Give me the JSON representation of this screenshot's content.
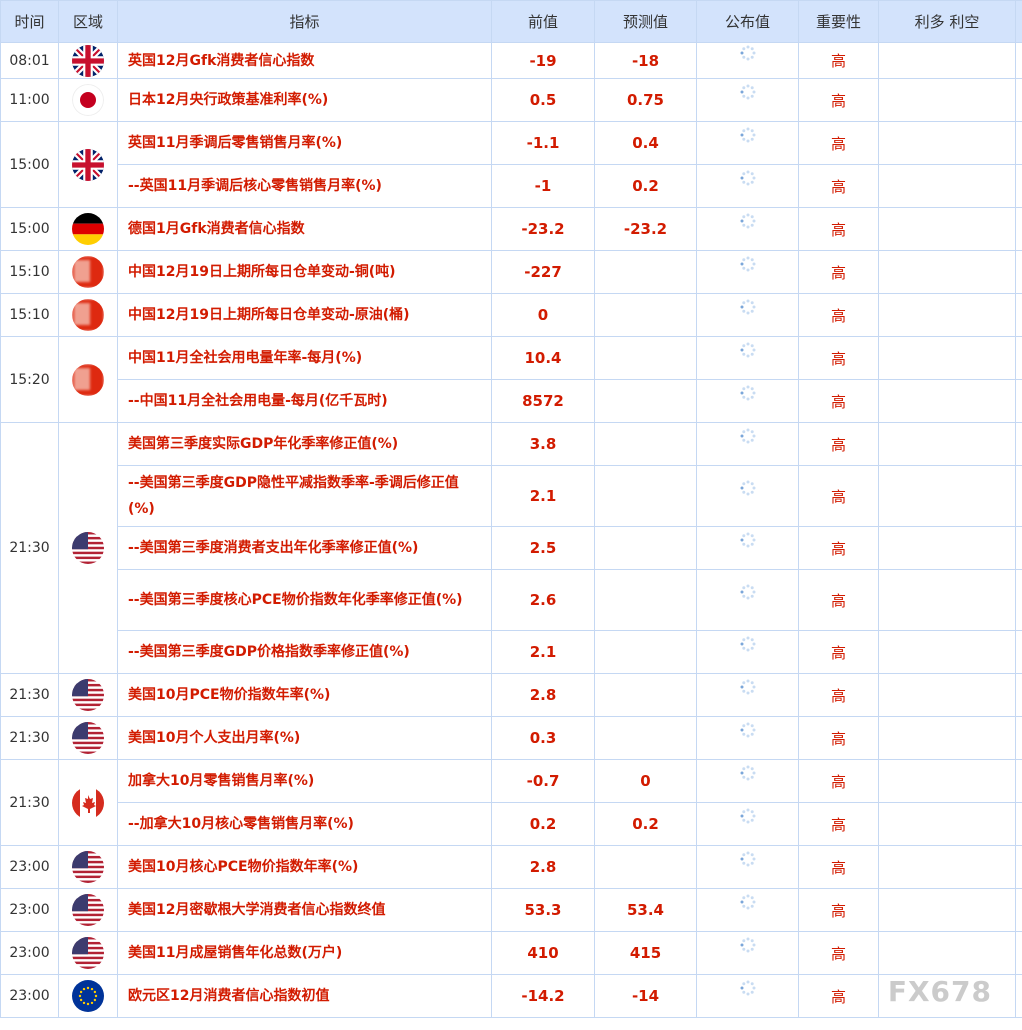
{
  "header": {
    "time": "时间",
    "region": "区域",
    "indicator": "指标",
    "previous": "前值",
    "forecast": "预测值",
    "actual": "公布值",
    "importance": "重要性",
    "impact": "利多 利空"
  },
  "colors": {
    "text_red": "#d21b00",
    "header_bg": "#d3e3fc",
    "border": "#c5d8f3"
  },
  "groups": [
    {
      "time": "08:01",
      "flag": "uk-flag",
      "items": [
        {
          "name": "英国12月Gfk消费者信心指数",
          "previous": "-19",
          "forecast": "-18",
          "actual": "",
          "importance": "高"
        }
      ]
    },
    {
      "time": "11:00",
      "flag": "japan-flag",
      "items": [
        {
          "name": "日本12月央行政策基准利率(%)",
          "previous": "0.5",
          "forecast": "0.75",
          "actual": "",
          "importance": "高"
        }
      ]
    },
    {
      "time": "15:00",
      "flag": "uk-flag",
      "items": [
        {
          "name": "英国11月季调后零售销售月率(%)",
          "previous": "-1.1",
          "forecast": "0.4",
          "actual": "",
          "importance": "高"
        },
        {
          "name": "--英国11月季调后核心零售销售月率(%)",
          "previous": "-1",
          "forecast": "0.2",
          "actual": "",
          "importance": "高"
        }
      ]
    },
    {
      "time": "15:00",
      "flag": "germany-flag",
      "items": [
        {
          "name": "德国1月Gfk消费者信心指数",
          "previous": "-23.2",
          "forecast": "-23.2",
          "actual": "",
          "importance": "高"
        }
      ]
    },
    {
      "time": "15:10",
      "flag": "china-flag",
      "items": [
        {
          "name": "中国12月19日上期所每日仓单变动-铜(吨)",
          "previous": "-227",
          "forecast": "",
          "actual": "",
          "importance": "高"
        }
      ]
    },
    {
      "time": "15:10",
      "flag": "china-flag",
      "items": [
        {
          "name": "中国12月19日上期所每日仓单变动-原油(桶)",
          "previous": "0",
          "forecast": "",
          "actual": "",
          "importance": "高"
        }
      ]
    },
    {
      "time": "15:20",
      "flag": "china-flag",
      "items": [
        {
          "name": "中国11月全社会用电量年率-每月(%)",
          "previous": "10.4",
          "forecast": "",
          "actual": "",
          "importance": "高"
        },
        {
          "name": "--中国11月全社会用电量-每月(亿千瓦时)",
          "previous": "8572",
          "forecast": "",
          "actual": "",
          "importance": "高"
        }
      ]
    },
    {
      "time": "21:30",
      "flag": "us-flag",
      "items": [
        {
          "name": "美国第三季度实际GDP年化季率修正值(%)",
          "previous": "3.8",
          "forecast": "",
          "actual": "",
          "importance": "高"
        },
        {
          "name": "--美国第三季度GDP隐性平减指数季率-季调后修正值(%)",
          "previous": "2.1",
          "forecast": "",
          "actual": "",
          "importance": "高"
        },
        {
          "name": "--美国第三季度消费者支出年化季率修正值(%)",
          "previous": "2.5",
          "forecast": "",
          "actual": "",
          "importance": "高"
        },
        {
          "name": "--美国第三季度核心PCE物价指数年化季率修正值(%)",
          "previous": "2.6",
          "forecast": "",
          "actual": "",
          "importance": "高"
        },
        {
          "name": "--美国第三季度GDP价格指数季率修正值(%)",
          "previous": "2.1",
          "forecast": "",
          "actual": "",
          "importance": "高"
        }
      ]
    },
    {
      "time": "21:30",
      "flag": "us-flag",
      "items": [
        {
          "name": "美国10月PCE物价指数年率(%)",
          "previous": "2.8",
          "forecast": "",
          "actual": "",
          "importance": "高"
        }
      ]
    },
    {
      "time": "21:30",
      "flag": "us-flag",
      "items": [
        {
          "name": "美国10月个人支出月率(%)",
          "previous": "0.3",
          "forecast": "",
          "actual": "",
          "importance": "高"
        }
      ]
    },
    {
      "time": "21:30",
      "flag": "canada-flag",
      "items": [
        {
          "name": "加拿大10月零售销售月率(%)",
          "previous": "-0.7",
          "forecast": "0",
          "actual": "",
          "importance": "高"
        },
        {
          "name": "--加拿大10月核心零售销售月率(%)",
          "previous": "0.2",
          "forecast": "0.2",
          "actual": "",
          "importance": "高"
        }
      ]
    },
    {
      "time": "23:00",
      "flag": "us-flag",
      "items": [
        {
          "name": "美国10月核心PCE物价指数年率(%)",
          "previous": "2.8",
          "forecast": "",
          "actual": "",
          "importance": "高"
        }
      ]
    },
    {
      "time": "23:00",
      "flag": "us-flag",
      "items": [
        {
          "name": "美国12月密歇根大学消费者信心指数终值",
          "previous": "53.3",
          "forecast": "53.4",
          "actual": "",
          "importance": "高"
        }
      ]
    },
    {
      "time": "23:00",
      "flag": "us-flag",
      "items": [
        {
          "name": "美国11月成屋销售年化总数(万户)",
          "previous": "410",
          "forecast": "415",
          "actual": "",
          "importance": "高"
        }
      ]
    },
    {
      "time": "23:00",
      "flag": "eu-flag",
      "items": [
        {
          "name": "欧元区12月消费者信心指数初值",
          "previous": "-14.2",
          "forecast": "-14",
          "actual": "",
          "importance": "高"
        }
      ]
    }
  ],
  "watermark": "FX678"
}
